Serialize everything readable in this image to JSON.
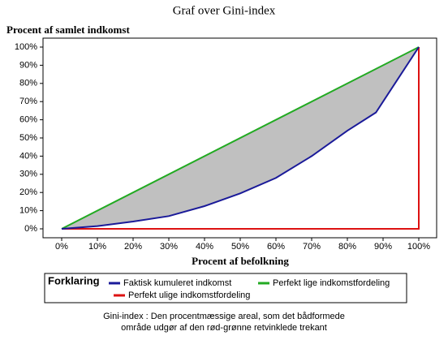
{
  "chart_data": {
    "type": "line",
    "title": "Graf over Gini-index",
    "ylabel": "Procent af samlet indkomst",
    "xlabel": "Procent af befolkning",
    "legend_title": "Forklaring",
    "caption": [
      "Gini-index : Den procentmæssige areal, som det bådformede",
      "område udgør af den rød-grønne retvinklede trekant"
    ],
    "fill_between": {
      "upper": 1,
      "lower": 0,
      "color": "#c0c0c0"
    },
    "series": [
      {
        "name": "Faktisk kumuleret indkomst",
        "color": "#1a1a99",
        "x": [
          0,
          10,
          20,
          30,
          40,
          50,
          60,
          70,
          80,
          88,
          100
        ],
        "values": [
          0,
          1.5,
          4,
          7,
          12.5,
          19.5,
          28,
          40,
          54,
          64,
          100
        ]
      },
      {
        "name": "Perfekt lige indkomstfordeling",
        "color": "#22aa22",
        "x": [
          0,
          100
        ],
        "values": [
          0,
          100
        ]
      },
      {
        "name": "Perfekt ulige indkomstfordeling",
        "color": "#dd1111",
        "x": [
          0,
          100,
          100
        ],
        "values": [
          0,
          0,
          100
        ]
      }
    ],
    "xlim": [
      0,
      100
    ],
    "ylim": [
      0,
      100
    ],
    "xticks": [
      {
        "value": 0,
        "label": "0%"
      },
      {
        "value": 10,
        "label": "10%"
      },
      {
        "value": 20,
        "label": "20%"
      },
      {
        "value": 30,
        "label": "30%"
      },
      {
        "value": 40,
        "label": "40%"
      },
      {
        "value": 50,
        "label": "50%"
      },
      {
        "value": 60,
        "label": "60%"
      },
      {
        "value": 70,
        "label": "70%"
      },
      {
        "value": 80,
        "label": "80%"
      },
      {
        "value": 90,
        "label": "90%"
      },
      {
        "value": 100,
        "label": "100%"
      }
    ],
    "yticks": [
      {
        "value": 0,
        "label": "0%"
      },
      {
        "value": 10,
        "label": "10%"
      },
      {
        "value": 20,
        "label": "20%"
      },
      {
        "value": 30,
        "label": "30%"
      },
      {
        "value": 40,
        "label": "40%"
      },
      {
        "value": 50,
        "label": "50%"
      },
      {
        "value": 60,
        "label": "60%"
      },
      {
        "value": 70,
        "label": "70%"
      },
      {
        "value": 80,
        "label": "80%"
      },
      {
        "value": 90,
        "label": "90%"
      },
      {
        "value": 100,
        "label": "100%"
      }
    ],
    "grid": false
  }
}
